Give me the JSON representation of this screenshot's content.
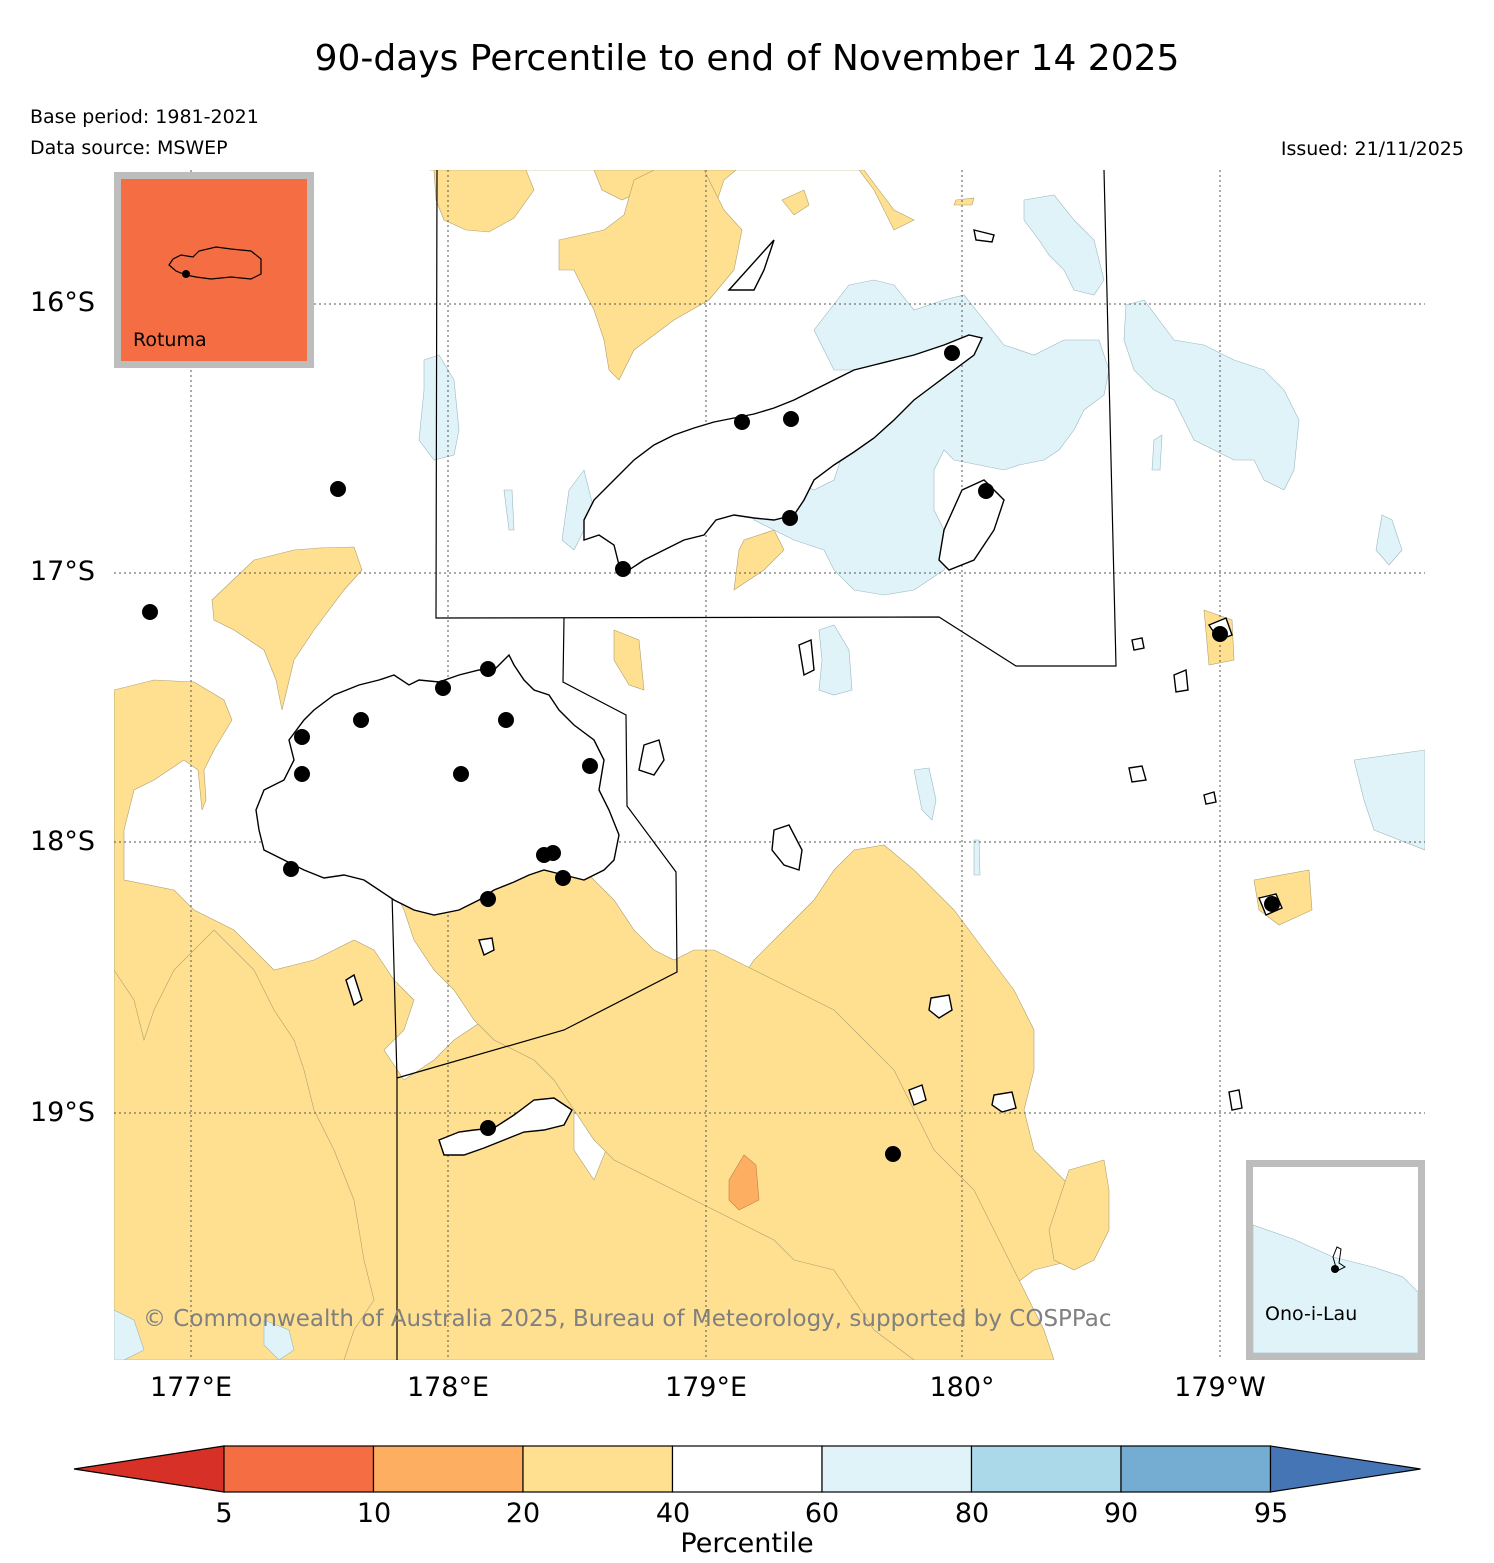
{
  "title": "90-days Percentile to end of November 14 2025",
  "base_period": "Base period: 1981-2021",
  "data_source": "Data source: MSWEP",
  "issued": "Issued: 21/11/2025",
  "lat_labels": [
    "16°S",
    "17°S",
    "18°S",
    "19°S"
  ],
  "lon_labels": [
    "177°E",
    "178°E",
    "179°E",
    "180°",
    "179°W"
  ],
  "insets": {
    "rotuma": {
      "label": "Rotuma",
      "fill": "#f46d43"
    },
    "ono_i_lau": {
      "label": "Ono-i-Lau",
      "fill": "#e0f3f8"
    }
  },
  "copyright": "© Commonwealth of Australia 2025, Bureau of Meteorology, supported by COSPPac",
  "colorbar": {
    "label": "Percentile",
    "ticks": [
      "5",
      "10",
      "20",
      "40",
      "60",
      "80",
      "90",
      "95"
    ],
    "colors": [
      "#d73027",
      "#f46d43",
      "#fdae61",
      "#fee090",
      "#ffffff",
      "#e0f3f8",
      "#abd9e9",
      "#74add1",
      "#4575b4"
    ]
  },
  "legend_colors": {
    "p20_40": "#fee090",
    "p10_20": "#fdae61",
    "p60_80": "#e0f3f8",
    "coast": "#000000",
    "station": "#000000"
  }
}
